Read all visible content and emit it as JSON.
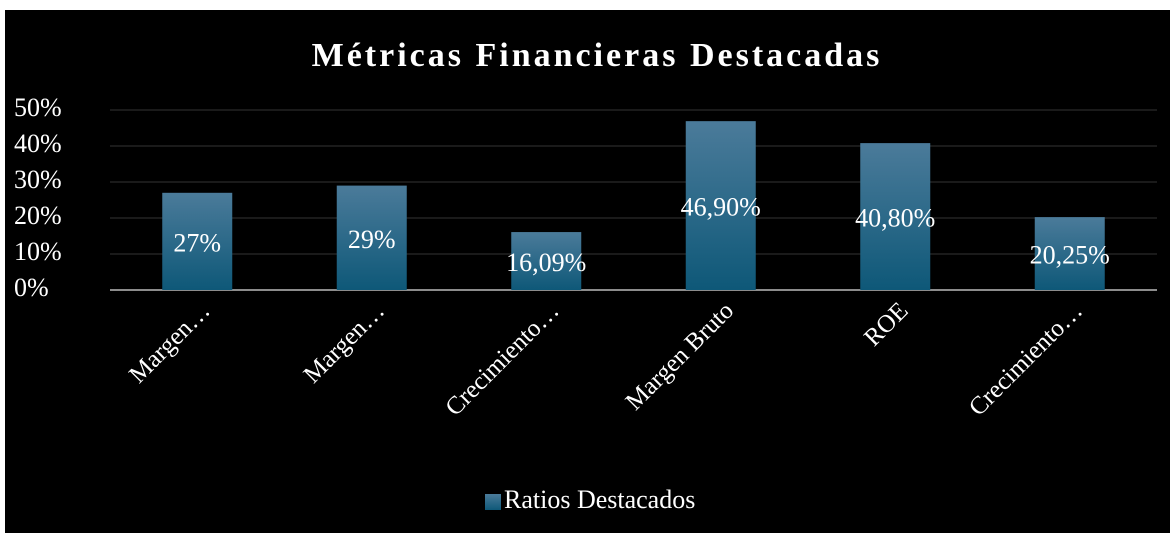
{
  "chart_data": {
    "type": "bar",
    "title": "Métricas Financieras Destacadas",
    "categories": [
      "Margen…",
      "Margen…",
      "Crecimiento…",
      "Margen Bruto",
      "ROE",
      "Crecimiento…"
    ],
    "series": [
      {
        "name": "Ratios Destacados",
        "color": "#1d6283",
        "values": [
          27,
          29,
          16.09,
          46.9,
          40.8,
          20.25
        ],
        "value_labels": [
          "27%",
          "29%",
          "16,09%",
          "46,90%",
          "40,80%",
          "20,25%"
        ]
      }
    ],
    "ylim": [
      0,
      50
    ],
    "yticks": [
      {
        "value": 0,
        "label": "0%"
      },
      {
        "value": 10,
        "label": "10%"
      },
      {
        "value": 20,
        "label": "20%"
      },
      {
        "value": 30,
        "label": "30%"
      },
      {
        "value": 40,
        "label": "40%"
      },
      {
        "value": 50,
        "label": "50%"
      }
    ],
    "grid": true,
    "legend": "bottom"
  }
}
